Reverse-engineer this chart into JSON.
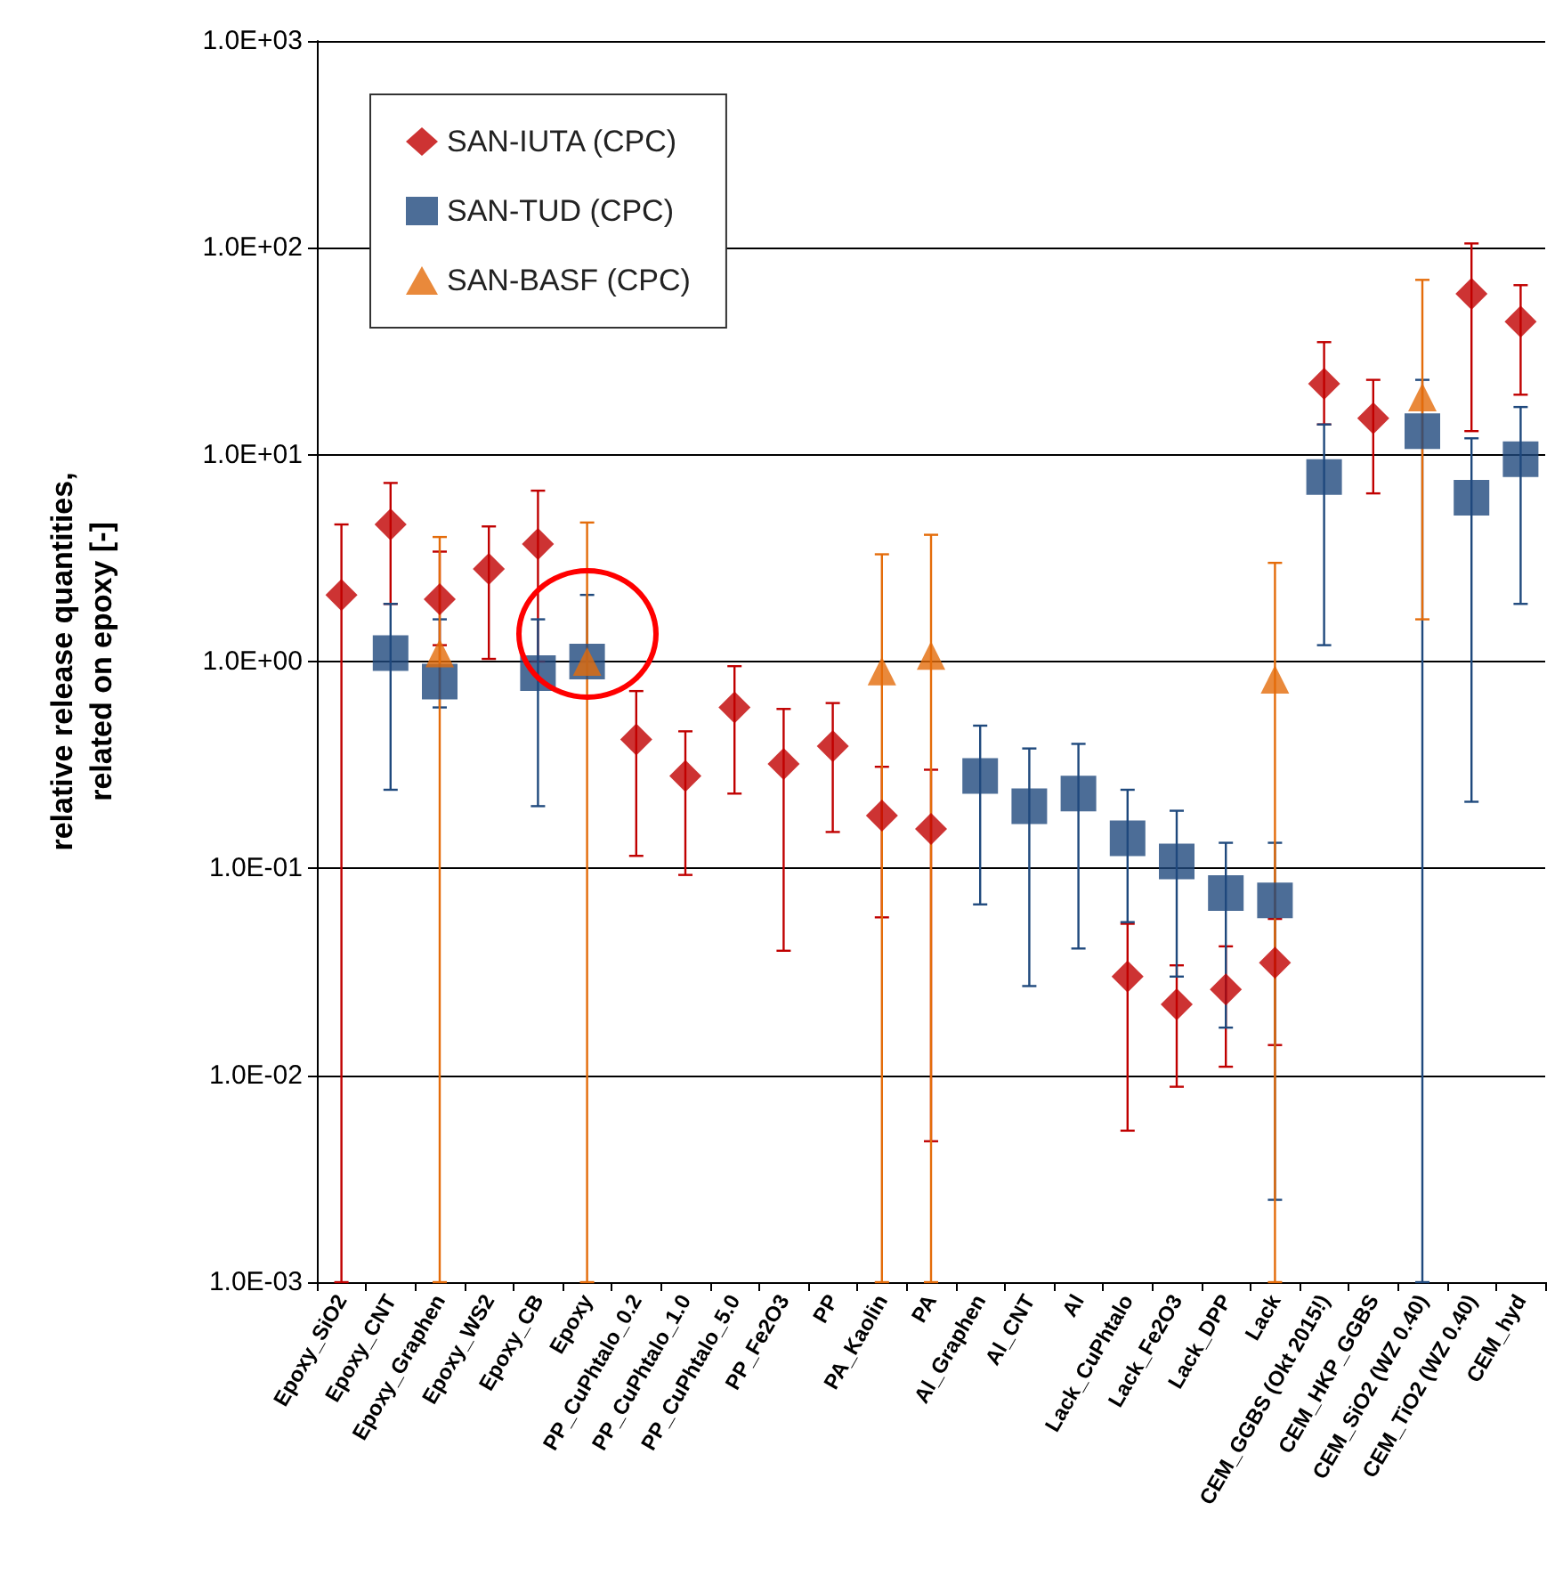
{
  "chart_data": {
    "type": "scatter",
    "ylabel": "relative release quantities,\nrelated on epoxy [-]",
    "categories": [
      "Epoxy_SiO2",
      "Epoxy_CNT",
      "Epoxy_Graphen",
      "Epoxy_WS2",
      "Epoxy_CB",
      "Epoxy",
      "PP_CuPhtalo_0.2",
      "PP_CuPhtalo_1.0",
      "PP_CuPhtalo_5.0",
      "PP_Fe2O3",
      "PP",
      "PA_Kaolin",
      "PA",
      "Al_Graphen",
      "Al_CNT",
      "Al",
      "Lack_CuPhtalo",
      "Lack_Fe2O3",
      "Lack_DPP",
      "Lack",
      "CEM_GGBS (Okt 2015!)",
      "CEM_HKP_GGBS",
      "CEM_SiO2 (WZ 0.40)",
      "CEM_TiO2 (WZ 0.40)",
      "CEM_hyd"
    ],
    "series": [
      {
        "name": "SAN-IUTA (CPC)",
        "color": "#c00000",
        "marker": "diamond",
        "values": [
          2.1,
          4.6,
          2.0,
          2.8,
          3.7,
          null,
          0.42,
          0.28,
          0.6,
          0.32,
          0.39,
          0.18,
          0.155,
          null,
          null,
          null,
          0.03,
          0.022,
          0.026,
          0.035,
          22,
          15,
          null,
          60,
          44
        ],
        "errors": [
          [
            0.001,
            4.6
          ],
          [
            1.9,
            7.3
          ],
          [
            1.2,
            3.4
          ],
          [
            1.03,
            4.5
          ],
          [
            1.0,
            6.7
          ],
          null,
          [
            0.115,
            0.72
          ],
          [
            0.093,
            0.46
          ],
          [
            0.23,
            0.95
          ],
          [
            0.04,
            0.59
          ],
          [
            0.15,
            0.63
          ],
          [
            0.058,
            0.31
          ],
          [
            0.0048,
            0.3
          ],
          null,
          null,
          null,
          [
            0.0054,
            0.054
          ],
          [
            0.0088,
            0.034
          ],
          [
            0.011,
            0.042
          ],
          [
            0.014,
            0.057
          ],
          [
            14,
            35
          ],
          [
            6.5,
            23
          ],
          null,
          [
            13,
            105
          ],
          [
            19.5,
            66
          ]
        ]
      },
      {
        "name": "SAN-TUD (CPC)",
        "color": "#1f497d",
        "marker": "square",
        "values": [
          null,
          1.1,
          0.8,
          null,
          0.88,
          1.0,
          null,
          null,
          null,
          null,
          null,
          null,
          null,
          0.28,
          0.2,
          0.23,
          0.14,
          0.108,
          0.076,
          0.07,
          7.8,
          null,
          13,
          6.2,
          9.5
        ],
        "errors": [
          null,
          [
            0.24,
            1.9
          ],
          [
            0.6,
            1.6
          ],
          null,
          [
            0.2,
            1.6
          ],
          [
            1.0,
            2.1
          ],
          null,
          null,
          null,
          null,
          null,
          null,
          null,
          [
            0.067,
            0.49
          ],
          [
            0.027,
            0.38
          ],
          [
            0.041,
            0.4
          ],
          [
            0.055,
            0.24
          ],
          [
            0.03,
            0.19
          ],
          [
            0.017,
            0.133
          ],
          [
            0.0025,
            0.133
          ],
          [
            1.2,
            14
          ],
          null,
          [
            0.001,
            23
          ],
          [
            0.21,
            12
          ],
          [
            1.9,
            17
          ]
        ]
      },
      {
        "name": "SAN-BASF (CPC)",
        "color": "#e46c0a",
        "marker": "triangle",
        "values": [
          null,
          null,
          1.1,
          null,
          null,
          1.0,
          null,
          null,
          null,
          null,
          null,
          0.9,
          1.07,
          null,
          null,
          null,
          null,
          null,
          null,
          0.82,
          null,
          null,
          19,
          null,
          null
        ],
        "errors": [
          null,
          null,
          [
            0.001,
            4.0
          ],
          null,
          null,
          [
            0.001,
            4.7
          ],
          null,
          null,
          null,
          null,
          null,
          [
            0.001,
            3.3
          ],
          [
            0.001,
            4.1
          ],
          null,
          null,
          null,
          null,
          null,
          null,
          [
            0.001,
            3.0
          ],
          null,
          null,
          [
            1.6,
            70
          ],
          null,
          null
        ]
      }
    ],
    "log": true,
    "ylim": [
      0.001,
      1000
    ],
    "yticks": [
      {
        "value": 0.001,
        "label": "1.0E-03"
      },
      {
        "value": 0.01,
        "label": "1.0E-02"
      },
      {
        "value": 0.1,
        "label": "1.0E-01"
      },
      {
        "value": 1,
        "label": "1.0E+00"
      },
      {
        "value": 10,
        "label": "1.0E+01"
      },
      {
        "value": 100,
        "label": "1.0E+02"
      },
      {
        "value": 1000,
        "label": "1.0E+03"
      }
    ],
    "grid": "y",
    "legend": "top left"
  }
}
